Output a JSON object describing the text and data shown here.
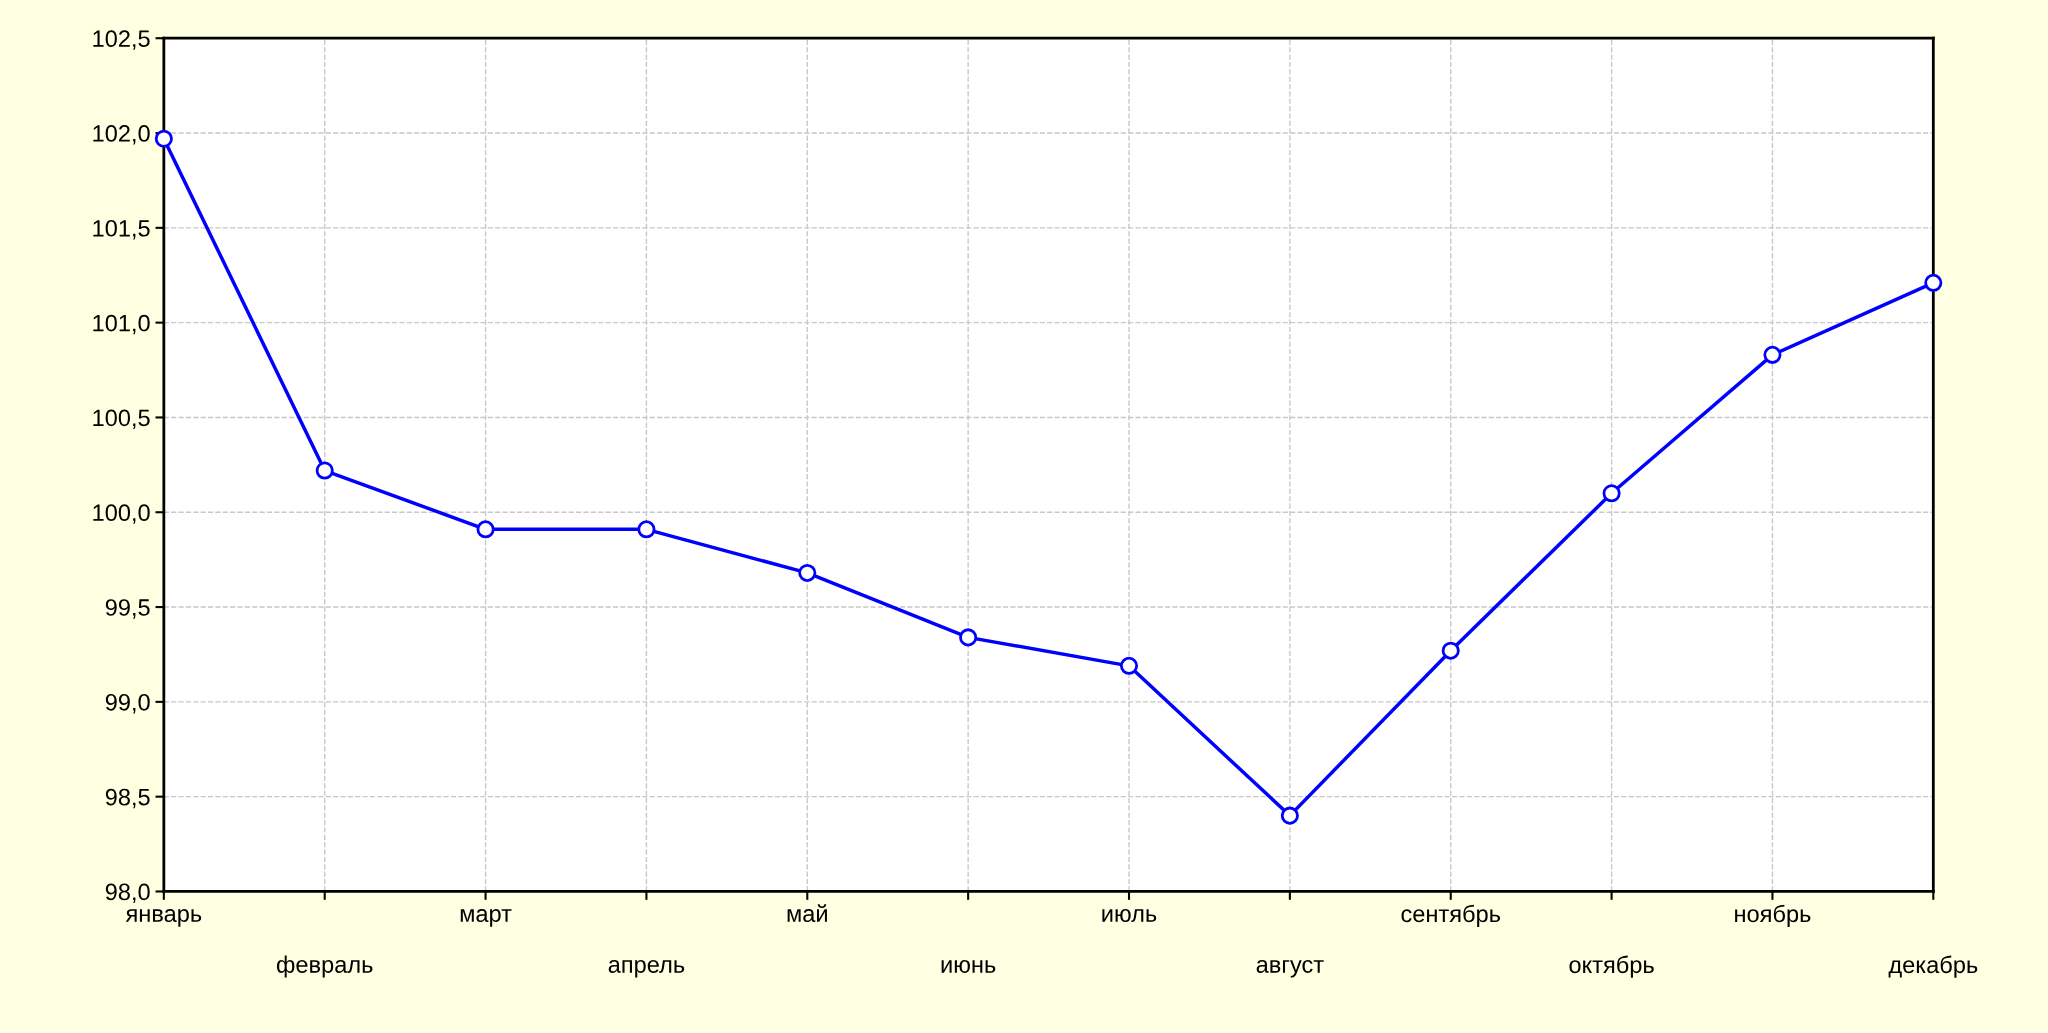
{
  "chart_data": {
    "type": "line",
    "categories": [
      "январь",
      "февраль",
      "март",
      "апрель",
      "май",
      "июнь",
      "июль",
      "август",
      "сентябрь",
      "октябрь",
      "ноябрь",
      "декабрь"
    ],
    "series": [
      {
        "color": "#0000ff",
        "values": [
          101.97,
          100.22,
          99.91,
          99.91,
          99.68,
          99.34,
          99.19,
          98.4,
          99.27,
          100.1,
          100.83,
          101.21
        ]
      }
    ],
    "ylim": [
      98.0,
      102.5
    ],
    "yticks": [
      {
        "value": 98.0,
        "label": "98,0"
      },
      {
        "value": 98.5,
        "label": "98,5"
      },
      {
        "value": 99.0,
        "label": "99,0"
      },
      {
        "value": 99.5,
        "label": "99,5"
      },
      {
        "value": 100.0,
        "label": "100,0"
      },
      {
        "value": 100.5,
        "label": "100,5"
      },
      {
        "value": 101.0,
        "label": "101,0"
      },
      {
        "value": 101.5,
        "label": "101,5"
      },
      {
        "value": 102.0,
        "label": "102,0"
      },
      {
        "value": 102.5,
        "label": "102,5"
      }
    ],
    "grid": true,
    "marker": "circle",
    "line_style": "solid"
  }
}
